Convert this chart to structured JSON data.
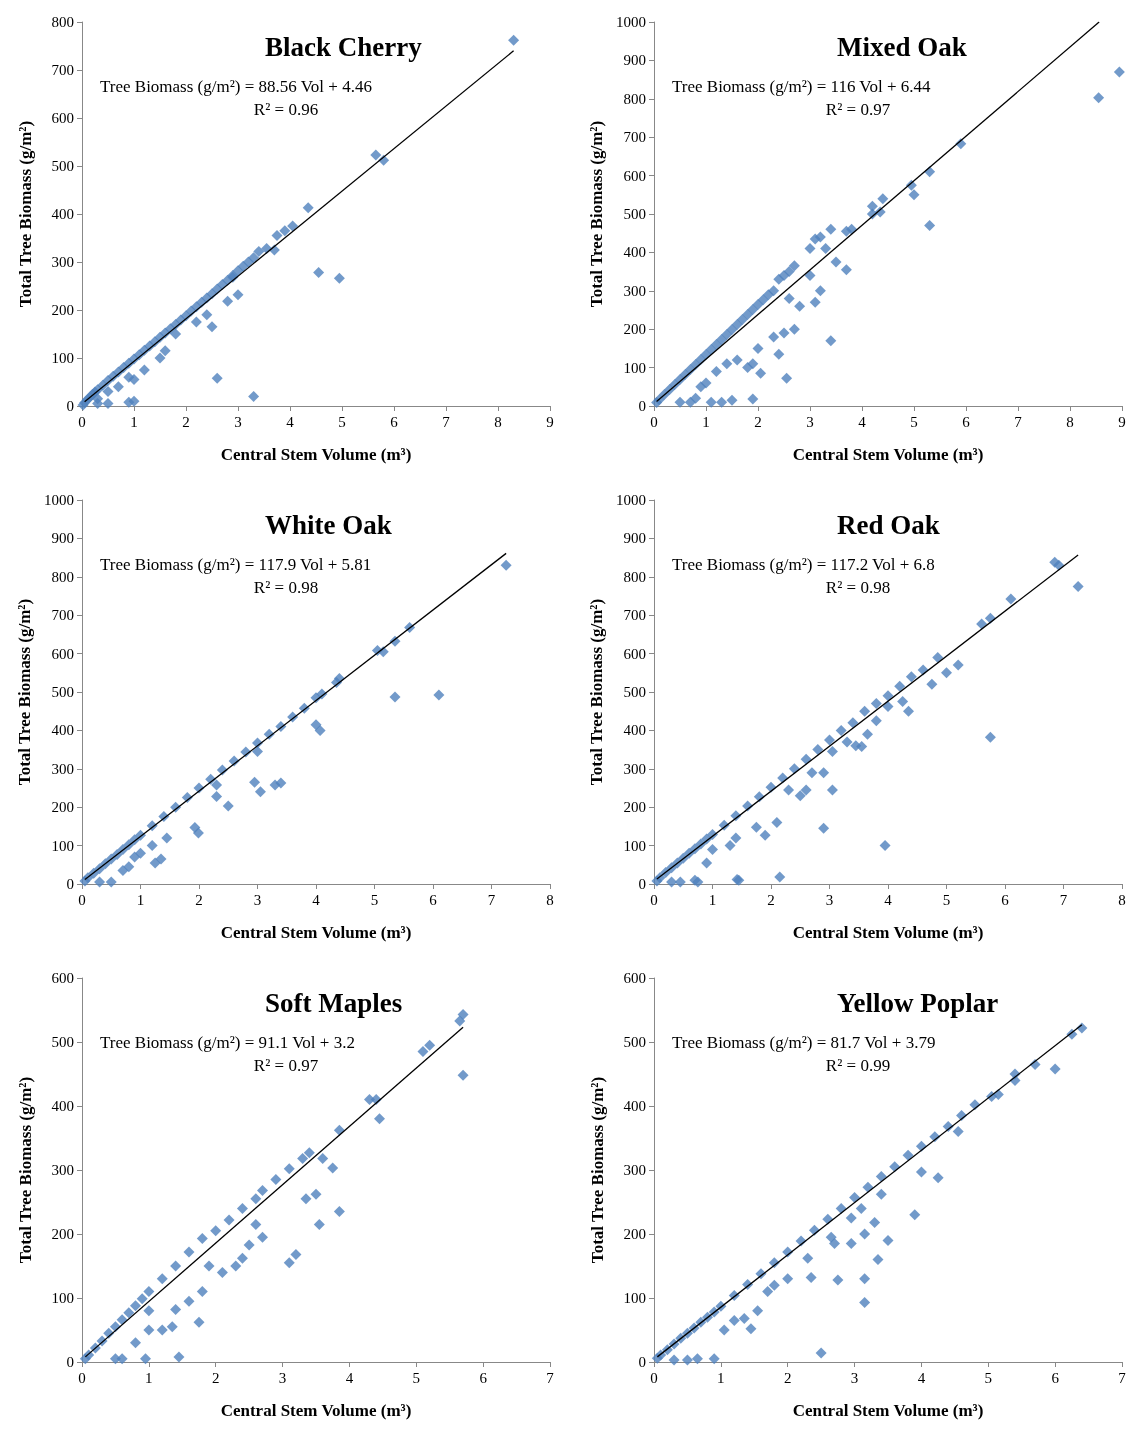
{
  "chart_data": [
    {
      "type": "scatter",
      "title": "Black Cherry",
      "xlabel": "Central Stem Volume (m³)",
      "ylabel": "Total Tree Biomass (g/m²)",
      "annotations": [
        "Tree Biomass (g/m²) = 88.56 Vol + 4.46",
        "R² = 0.96"
      ],
      "xlim": [
        0,
        9
      ],
      "xticks": [
        0,
        1,
        2,
        3,
        4,
        5,
        6,
        7,
        8,
        9
      ],
      "ylim": [
        0,
        800
      ],
      "yticks": [
        0,
        100,
        200,
        300,
        400,
        500,
        600,
        700,
        800
      ],
      "marker": "diamond",
      "grid": false,
      "series": [
        {
          "type": "scatter",
          "color": "#4f81bd",
          "x": [
            0.02,
            0.05,
            0.1,
            0.15,
            0.2,
            0.25,
            0.3,
            0.4,
            0.5,
            0.6,
            0.7,
            0.8,
            0.9,
            1.0,
            1.1,
            1.2,
            1.3,
            1.4,
            1.5,
            1.6,
            1.7,
            1.8,
            1.9,
            2.0,
            2.1,
            2.2,
            2.3,
            2.4,
            2.5,
            2.6,
            2.7,
            2.8,
            2.9,
            3.0,
            3.1,
            3.2,
            3.3,
            3.4,
            0.3,
            0.5,
            0.5,
            0.7,
            0.9,
            1.0,
            1.2,
            1.5,
            1.6,
            1.8,
            2.2,
            2.4,
            2.5,
            2.8,
            3.0,
            2.6,
            3.3,
            0.9,
            1.0,
            0.3,
            3.7,
            3.75,
            3.9,
            4.05,
            4.35,
            4.55,
            4.95,
            5.65,
            5.8,
            8.3,
            2.9,
            3.55
          ],
          "values": [
            2,
            7,
            13,
            18,
            24,
            29,
            34,
            43,
            53,
            62,
            71,
            80,
            89,
            98,
            107,
            116,
            125,
            134,
            143,
            152,
            161,
            170,
            179,
            188,
            198,
            207,
            216,
            225,
            234,
            244,
            253,
            262,
            272,
            282,
            291,
            300,
            309,
            322,
            15,
            5,
            30,
            40,
            60,
            55,
            75,
            100,
            115,
            150,
            175,
            190,
            165,
            218,
            232,
            58,
            20,
            8,
            10,
            5,
            325,
            355,
            365,
            375,
            413,
            278,
            266,
            523,
            512,
            762,
            268,
            328
          ]
        },
        {
          "type": "line",
          "color": "#000000",
          "marker": "none",
          "line_style": "solid",
          "x": [
            0.05,
            8.3
          ],
          "values": [
            9,
            740
          ]
        }
      ]
    },
    {
      "type": "scatter",
      "title": "Mixed Oak",
      "xlabel": "Central Stem Volume (m³)",
      "ylabel": "Total Tree Biomass (g/m²)",
      "annotations": [
        "Tree Biomass (g/m²) = 116 Vol + 6.44",
        "R² = 0.97"
      ],
      "xlim": [
        0,
        9
      ],
      "xticks": [
        0,
        1,
        2,
        3,
        4,
        5,
        6,
        7,
        8,
        9
      ],
      "ylim": [
        0,
        1000
      ],
      "yticks": [
        0,
        100,
        200,
        300,
        400,
        500,
        600,
        700,
        800,
        900,
        1000
      ],
      "marker": "diamond",
      "grid": false,
      "series": [
        {
          "type": "scatter",
          "color": "#4f81bd",
          "x": [
            0.05,
            0.1,
            0.2,
            0.3,
            0.4,
            0.5,
            0.6,
            0.7,
            0.8,
            0.9,
            1.0,
            1.1,
            1.2,
            1.3,
            1.4,
            1.5,
            1.6,
            1.7,
            1.8,
            1.9,
            2.0,
            2.1,
            2.2,
            2.3,
            2.4,
            2.5,
            2.6,
            2.7,
            3.0,
            3.1,
            3.2,
            3.4,
            3.7,
            3.8,
            0.5,
            0.7,
            0.8,
            0.9,
            1.1,
            1.3,
            1.5,
            1.9,
            1.0,
            1.2,
            1.4,
            1.6,
            1.8,
            1.9,
            2.0,
            2.05,
            2.3,
            2.4,
            2.55,
            2.5,
            2.7,
            2.8,
            3.1,
            3.2,
            3.4,
            3.5,
            3.7,
            3.3,
            4.2,
            4.2,
            4.4,
            4.35,
            4.95,
            5.0,
            5.3,
            5.3,
            5.9,
            8.55,
            8.95,
            2.6,
            3.0
          ],
          "values": [
            9,
            16,
            30,
            43,
            56,
            69,
            82,
            95,
            108,
            121,
            134,
            147,
            160,
            173,
            186,
            199,
            212,
            225,
            238,
            251,
            264,
            277,
            290,
            300,
            330,
            340,
            350,
            365,
            410,
            435,
            440,
            460,
            455,
            460,
            10,
            10,
            20,
            50,
            10,
            10,
            15,
            18,
            60,
            90,
            110,
            120,
            100,
            110,
            150,
            85,
            180,
            135,
            72,
            190,
            200,
            260,
            270,
            300,
            170,
            375,
            355,
            410,
            520,
            500,
            540,
            505,
            575,
            550,
            610,
            470,
            683,
            803,
            870,
            280,
            340
          ]
        },
        {
          "type": "line",
          "color": "#000000",
          "marker": "none",
          "line_style": "solid",
          "x": [
            0.05,
            8.56
          ],
          "values": [
            12,
            1000
          ]
        }
      ]
    },
    {
      "type": "scatter",
      "title": "White Oak",
      "xlabel": "Central Stem Volume (m³)",
      "ylabel": "Total Tree Biomass (g/m²)",
      "annotations": [
        "Tree Biomass (g/m²) = 117.9 Vol + 5.81",
        "R² = 0.98"
      ],
      "xlim": [
        0,
        8
      ],
      "xticks": [
        0,
        1,
        2,
        3,
        4,
        5,
        6,
        7,
        8
      ],
      "ylim": [
        0,
        1000
      ],
      "yticks": [
        0,
        100,
        200,
        300,
        400,
        500,
        600,
        700,
        800,
        900,
        1000
      ],
      "marker": "diamond",
      "grid": false,
      "series": [
        {
          "type": "scatter",
          "color": "#4f81bd",
          "x": [
            0.05,
            0.1,
            0.2,
            0.3,
            0.4,
            0.5,
            0.6,
            0.7,
            0.8,
            0.9,
            1.0,
            1.2,
            1.4,
            1.6,
            1.8,
            2.0,
            2.2,
            2.4,
            2.6,
            2.8,
            3.0,
            3.2,
            3.4,
            3.6,
            3.8,
            4.0,
            4.1,
            0.3,
            0.5,
            0.7,
            0.8,
            0.9,
            1.0,
            1.25,
            1.35,
            1.45,
            1.93,
            1.99,
            2.3,
            2.5,
            2.3,
            2.95,
            3.05,
            3.3,
            3.4,
            3.0,
            4.0,
            4.07,
            4.35,
            4.4,
            5.05,
            5.15,
            5.35,
            5.6,
            5.35,
            6.1,
            7.25,
            1.2
          ],
          "values": [
            8,
            16,
            28,
            40,
            53,
            65,
            77,
            90,
            102,
            115,
            127,
            152,
            176,
            200,
            225,
            250,
            273,
            297,
            320,
            344,
            367,
            390,
            410,
            435,
            458,
            485,
            495,
            5,
            5,
            35,
            45,
            70,
            80,
            55,
            65,
            120,
            147,
            133,
            228,
            203,
            258,
            265,
            240,
            258,
            263,
            345,
            415,
            400,
            525,
            535,
            608,
            605,
            632,
            668,
            487,
            492,
            830,
            100
          ]
        },
        {
          "type": "line",
          "color": "#000000",
          "marker": "none",
          "line_style": "solid",
          "x": [
            0.05,
            7.25
          ],
          "values": [
            12,
            861
          ]
        }
      ]
    },
    {
      "type": "scatter",
      "title": "Red Oak",
      "xlabel": "Central Stem Volume (m³)",
      "ylabel": "Total Tree Biomass (g/m²)",
      "annotations": [
        "Tree Biomass (g/m²) = 117.2 Vol + 6.8",
        "R² = 0.98"
      ],
      "xlim": [
        0,
        8
      ],
      "xticks": [
        0,
        1,
        2,
        3,
        4,
        5,
        6,
        7,
        8
      ],
      "ylim": [
        0,
        1000
      ],
      "yticks": [
        0,
        100,
        200,
        300,
        400,
        500,
        600,
        700,
        800,
        900,
        1000
      ],
      "marker": "diamond",
      "grid": false,
      "series": [
        {
          "type": "scatter",
          "color": "#4f81bd",
          "x": [
            0.05,
            0.1,
            0.2,
            0.3,
            0.4,
            0.5,
            0.6,
            0.7,
            0.8,
            0.9,
            1.0,
            1.2,
            1.4,
            1.6,
            1.8,
            2.0,
            2.2,
            2.4,
            2.6,
            2.8,
            3.0,
            3.2,
            3.4,
            3.6,
            3.8,
            4.0,
            4.2,
            4.4,
            4.6,
            0.3,
            0.45,
            0.7,
            0.75,
            0.9,
            1.0,
            1.3,
            1.4,
            1.42,
            1.45,
            1.75,
            1.9,
            2.1,
            2.15,
            2.3,
            2.5,
            2.6,
            2.7,
            2.9,
            2.9,
            3.05,
            3.05,
            3.3,
            3.45,
            3.55,
            3.65,
            3.8,
            3.95,
            4.0,
            4.25,
            4.35,
            4.75,
            4.85,
            5.0,
            5.2,
            5.6,
            5.75,
            5.75,
            6.1,
            6.85,
            6.92,
            7.25
          ],
          "values": [
            8,
            16,
            30,
            42,
            55,
            67,
            80,
            92,
            104,
            117,
            129,
            153,
            178,
            203,
            227,
            252,
            276,
            300,
            325,
            350,
            375,
            400,
            420,
            450,
            470,
            490,
            515,
            540,
            557,
            5,
            5,
            10,
            5,
            55,
            90,
            100,
            120,
            12,
            10,
            148,
            127,
            160,
            18,
            245,
            230,
            245,
            290,
            145,
            290,
            245,
            345,
            370,
            360,
            358,
            390,
            425,
            100,
            462,
            475,
            450,
            520,
            590,
            550,
            570,
            677,
            692,
            382,
            742,
            838,
            830,
            775
          ]
        },
        {
          "type": "line",
          "color": "#000000",
          "marker": "none",
          "line_style": "solid",
          "x": [
            0.05,
            7.25
          ],
          "values": [
            13,
            857
          ]
        }
      ]
    },
    {
      "type": "scatter",
      "title": "Soft Maples",
      "xlabel": "Central Stem Volume (m³)",
      "ylabel": "Total Tree Biomass (g/m²)",
      "annotations": [
        "Tree Biomass (g/m²) = 91.1 Vol + 3.2",
        "R² = 0.97"
      ],
      "xlim": [
        0,
        7
      ],
      "xticks": [
        0,
        1,
        2,
        3,
        4,
        5,
        6,
        7
      ],
      "ylim": [
        0,
        600
      ],
      "yticks": [
        0,
        100,
        200,
        300,
        400,
        500,
        600
      ],
      "marker": "diamond",
      "grid": false,
      "series": [
        {
          "type": "scatter",
          "color": "#4f81bd",
          "x": [
            0.05,
            0.1,
            0.2,
            0.3,
            0.4,
            0.5,
            0.6,
            0.7,
            0.8,
            0.9,
            1.0,
            1.2,
            1.4,
            1.6,
            1.8,
            2.0,
            2.2,
            2.4,
            2.6,
            2.7,
            2.9,
            3.1,
            3.3,
            3.4,
            0.5,
            0.6,
            0.8,
            0.95,
            1.0,
            1.2,
            1.35,
            1.4,
            1.45,
            1.6,
            1.75,
            1.8,
            1.9,
            2.1,
            2.3,
            2.4,
            2.5,
            2.6,
            2.7,
            3.1,
            3.2,
            3.35,
            3.5,
            3.55,
            3.6,
            3.75,
            3.85,
            3.85,
            4.3,
            4.4,
            4.45,
            5.1,
            5.2,
            5.65,
            5.7,
            5.7,
            1.0
          ],
          "values": [
            5,
            11,
            22,
            33,
            45,
            55,
            66,
            77,
            88,
            99,
            110,
            130,
            150,
            172,
            193,
            205,
            222,
            240,
            255,
            268,
            285,
            302,
            318,
            327,
            5,
            5,
            30,
            5,
            50,
            50,
            55,
            82,
            8,
            95,
            62,
            110,
            150,
            140,
            150,
            162,
            183,
            215,
            195,
            155,
            168,
            255,
            262,
            215,
            318,
            303,
            235,
            362,
            410,
            410,
            380,
            485,
            495,
            533,
            543,
            448,
            80
          ]
        },
        {
          "type": "line",
          "color": "#000000",
          "marker": "none",
          "line_style": "solid",
          "x": [
            0.05,
            5.7
          ],
          "values": [
            8,
            523
          ]
        }
      ]
    },
    {
      "type": "scatter",
      "title": "Yellow Poplar",
      "xlabel": "Central Stem Volume (m³)",
      "ylabel": "Total Tree Biomass (g/m²)",
      "annotations": [
        "Tree Biomass (g/m²) = 81.7 Vol + 3.79",
        "R² = 0.99"
      ],
      "xlim": [
        0,
        7
      ],
      "xticks": [
        0,
        1,
        2,
        3,
        4,
        5,
        6,
        7
      ],
      "ylim": [
        0,
        600
      ],
      "yticks": [
        0,
        100,
        200,
        300,
        400,
        500,
        600
      ],
      "marker": "diamond",
      "grid": false,
      "series": [
        {
          "type": "scatter",
          "color": "#4f81bd",
          "x": [
            0.05,
            0.1,
            0.2,
            0.3,
            0.4,
            0.5,
            0.6,
            0.7,
            0.8,
            0.9,
            1.0,
            1.2,
            1.4,
            1.6,
            1.8,
            2.0,
            2.2,
            2.4,
            2.6,
            2.8,
            3.0,
            3.2,
            3.4,
            3.6,
            3.8,
            4.0,
            4.2,
            4.4,
            4.6,
            4.8,
            0.3,
            0.5,
            0.65,
            0.9,
            1.05,
            1.2,
            1.35,
            1.45,
            1.55,
            1.7,
            1.8,
            2.0,
            2.3,
            2.35,
            2.5,
            2.65,
            2.7,
            2.75,
            2.95,
            2.95,
            3.1,
            3.15,
            3.15,
            3.15,
            3.3,
            3.35,
            3.5,
            3.4,
            3.9,
            4.0,
            4.25,
            4.55,
            5.05,
            5.15,
            5.4,
            5.4,
            5.7,
            6.0,
            6.25,
            6.4
          ],
          "values": [
            6,
            11,
            19,
            28,
            37,
            45,
            53,
            62,
            70,
            78,
            87,
            104,
            121,
            138,
            155,
            172,
            189,
            206,
            223,
            240,
            257,
            273,
            290,
            305,
            323,
            337,
            352,
            368,
            385,
            402,
            3,
            3,
            5,
            5,
            50,
            65,
            68,
            52,
            80,
            110,
            120,
            130,
            162,
            132,
            14,
            195,
            185,
            128,
            225,
            185,
            240,
            200,
            130,
            93,
            218,
            160,
            190,
            262,
            230,
            297,
            288,
            360,
            415,
            418,
            440,
            450,
            465,
            458,
            512,
            522
          ]
        },
        {
          "type": "line",
          "color": "#000000",
          "marker": "none",
          "line_style": "solid",
          "x": [
            0.05,
            6.4
          ],
          "values": [
            8,
            527
          ]
        }
      ]
    }
  ]
}
